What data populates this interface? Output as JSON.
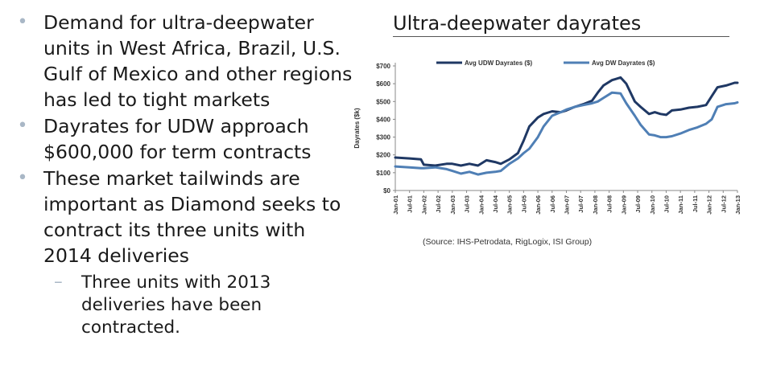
{
  "bullets": [
    {
      "text": "Demand for ultra-deepwater units in West Africa, Brazil, U.S. Gulf of Mexico and other regions has led to tight markets"
    },
    {
      "text": "Dayrates for UDW approach $600,000 for term contracts"
    },
    {
      "text": "These market tailwinds are important as Diamond seeks to contract its three units with 2014 deliveries"
    }
  ],
  "sub_bullet": {
    "text": "Three units with 2013 deliveries have been contracted."
  },
  "bullet_glyph": "•",
  "dash_glyph": "–",
  "slide_title": "Ultra-deepwater dayrates",
  "source": "(Source: IHS-Petrodata, RigLogix, ISI Group)",
  "colors": {
    "udw": "#1f3864",
    "dw": "#4f7fb5"
  },
  "chart_data": {
    "type": "line",
    "title": "",
    "xlabel": "",
    "ylabel": "Dayrates ($k)",
    "ylim": [
      0,
      700
    ],
    "yticks": [
      0,
      100,
      200,
      300,
      400,
      500,
      600,
      700
    ],
    "ytick_labels": [
      "$0",
      "$100",
      "$200",
      "$300",
      "$400",
      "$500",
      "$600",
      "$700"
    ],
    "xlim": [
      2001.0,
      2013.0
    ],
    "xtick_labels": [
      "Jan-01",
      "Jul-01",
      "Jan-02",
      "Jul-02",
      "Jan-03",
      "Jul-03",
      "Jan-04",
      "Jul-04",
      "Jan-05",
      "Jul-05",
      "Jan-06",
      "Jul-06",
      "Jan-07",
      "Jul-07",
      "Jan-08",
      "Jul-08",
      "Jan-09",
      "Jul-09",
      "Jan-10",
      "Jul-10",
      "Jan-11",
      "Jul-11",
      "Jan-12",
      "Jul-12",
      "Jan-13"
    ],
    "legend_position": "top",
    "series": [
      {
        "name": "Avg UDW Dayrates ($)",
        "x": [
          2001.0,
          2001.5,
          2001.9,
          2002.0,
          2002.4,
          2002.8,
          2003.0,
          2003.3,
          2003.6,
          2003.9,
          2004.2,
          2004.5,
          2004.7,
          2005.0,
          2005.3,
          2005.5,
          2005.7,
          2006.0,
          2006.2,
          2006.5,
          2006.8,
          2007.0,
          2007.3,
          2007.6,
          2007.9,
          2008.1,
          2008.3,
          2008.6,
          2008.9,
          2009.1,
          2009.4,
          2009.6,
          2009.9,
          2010.1,
          2010.3,
          2010.5,
          2010.7,
          2011.0,
          2011.3,
          2011.6,
          2011.9,
          2012.1,
          2012.3,
          2012.6,
          2012.9,
          2013.0
        ],
        "values": [
          185,
          180,
          175,
          145,
          140,
          150,
          150,
          140,
          150,
          140,
          170,
          160,
          150,
          175,
          210,
          280,
          360,
          410,
          430,
          445,
          440,
          450,
          470,
          485,
          505,
          550,
          590,
          620,
          635,
          600,
          500,
          470,
          430,
          440,
          430,
          425,
          450,
          455,
          465,
          470,
          480,
          530,
          580,
          590,
          605,
          605
        ]
      },
      {
        "name": "Avg DW Dayrates ($)",
        "x": [
          2001.0,
          2001.5,
          2001.9,
          2002.0,
          2002.4,
          2002.8,
          2003.0,
          2003.3,
          2003.6,
          2003.9,
          2004.2,
          2004.5,
          2004.7,
          2005.0,
          2005.3,
          2005.5,
          2005.7,
          2006.0,
          2006.2,
          2006.5,
          2006.8,
          2007.0,
          2007.3,
          2007.6,
          2007.9,
          2008.1,
          2008.3,
          2008.6,
          2008.9,
          2009.1,
          2009.4,
          2009.6,
          2009.9,
          2010.1,
          2010.3,
          2010.5,
          2010.7,
          2011.0,
          2011.3,
          2011.6,
          2011.9,
          2012.1,
          2012.3,
          2012.6,
          2012.9,
          2013.0
        ],
        "values": [
          135,
          130,
          125,
          125,
          130,
          120,
          110,
          95,
          105,
          90,
          100,
          105,
          110,
          150,
          180,
          210,
          235,
          300,
          360,
          420,
          440,
          455,
          470,
          480,
          490,
          500,
          520,
          550,
          545,
          490,
          420,
          370,
          315,
          310,
          300,
          300,
          305,
          320,
          340,
          355,
          375,
          400,
          470,
          485,
          490,
          495
        ]
      }
    ]
  }
}
